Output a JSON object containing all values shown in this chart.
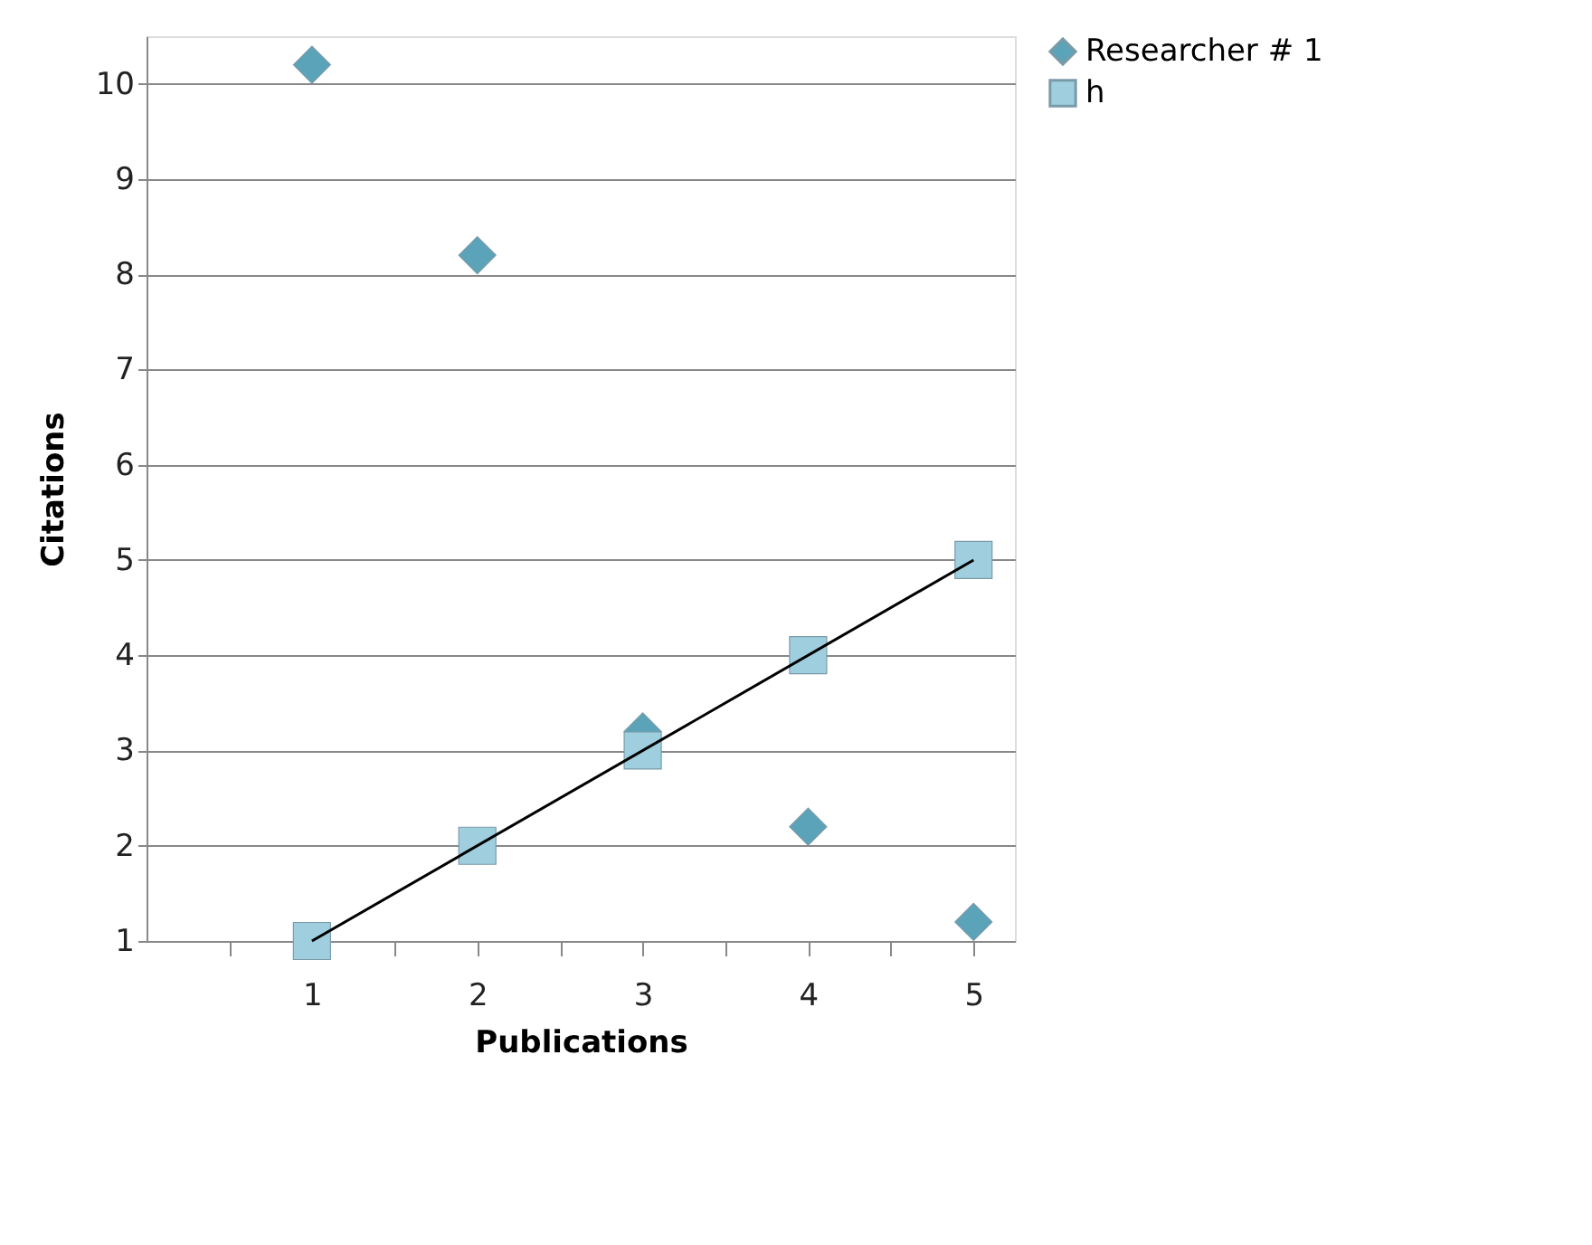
{
  "chart_data": {
    "type": "scatter",
    "xlabel": "Publications",
    "ylabel": "Citations",
    "x": [
      1,
      2,
      3,
      4,
      5
    ],
    "series": [
      {
        "name": "Researcher # 1",
        "color": "#5ba3b8",
        "marker": "diamond",
        "values": [
          10.2,
          8.2,
          3.2,
          2.2,
          1.2
        ]
      },
      {
        "name": "h",
        "color": "#9fcfdf",
        "marker": "square",
        "values": [
          1,
          2,
          3,
          4,
          5
        ]
      },
      {
        "type": "line",
        "color": "#000000",
        "marker": "none",
        "x": [
          1,
          5
        ],
        "values": [
          1,
          5
        ]
      }
    ],
    "xlim": [
      0,
      5.25
    ],
    "xticks": [
      {
        "value": 0.5,
        "label": null
      },
      1,
      {
        "value": 1.5,
        "label": null
      },
      2,
      {
        "value": 2.5,
        "label": null
      },
      3,
      {
        "value": 3.5,
        "label": null
      },
      4,
      {
        "value": 4.5,
        "label": null
      },
      5
    ],
    "ylim": [
      1,
      10.5
    ],
    "yticks": [
      1,
      2,
      3,
      4,
      5,
      6,
      7,
      8,
      9,
      10
    ],
    "grid": "y",
    "legend": "right"
  }
}
